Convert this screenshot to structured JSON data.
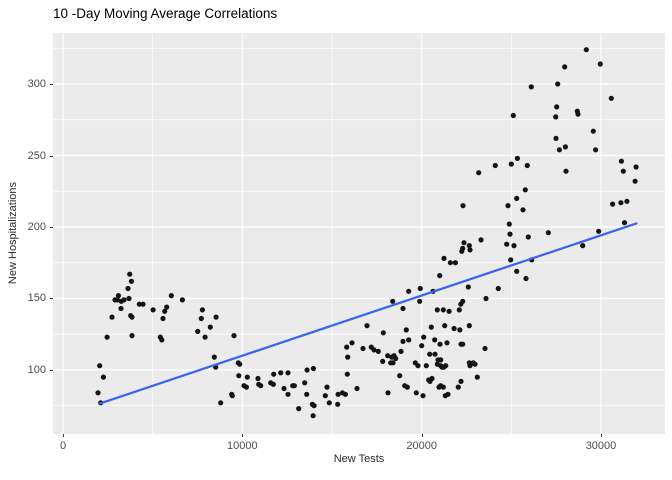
{
  "title": "10 -Day Moving Average Correlations",
  "chart_data": {
    "type": "scatter",
    "title": "10 -Day Moving Average Correlations",
    "xlabel": "New Tests",
    "ylabel": "New Hospitalizations",
    "x_domain": [
      -560,
      33570
    ],
    "y_domain": [
      55.2,
      335.7
    ],
    "x_ticks": [
      0,
      10000,
      20000,
      30000
    ],
    "x_minor_ticks": [
      5000,
      15000,
      25000
    ],
    "y_ticks": [
      100,
      150,
      200,
      250,
      300
    ],
    "y_minor_ticks": [
      75,
      125,
      175,
      225,
      275,
      325
    ],
    "grid": "on",
    "legend": "none",
    "panel_bg": "#EBEBEB",
    "grid_major_color": "#FFFFFF",
    "grid_minor_color": "#FFFFFF",
    "point_color": "#141414",
    "trend_color": "#3A63EE",
    "trend_line": {
      "x": [
        2050,
        31980
      ],
      "y": [
        76.5,
        202.5
      ]
    },
    "points": [
      [
        3720,
        167
      ],
      [
        3810,
        162
      ],
      [
        3625,
        157
      ],
      [
        3085,
        152
      ],
      [
        2900,
        149
      ],
      [
        3030,
        149
      ],
      [
        3250,
        148
      ],
      [
        3400,
        149
      ],
      [
        3680,
        150
      ],
      [
        3235,
        143
      ],
      [
        2733,
        137
      ],
      [
        3775,
        138
      ],
      [
        3848,
        137
      ],
      [
        4255,
        146
      ],
      [
        4460,
        146
      ],
      [
        5020,
        142
      ],
      [
        5670,
        141
      ],
      [
        5782,
        144
      ],
      [
        6040,
        152
      ],
      [
        6655,
        149
      ],
      [
        5577,
        136
      ],
      [
        5425,
        123
      ],
      [
        5505,
        121
      ],
      [
        2455,
        123
      ],
      [
        3848,
        124
      ],
      [
        7770,
        142
      ],
      [
        7713,
        136
      ],
      [
        8215,
        130
      ],
      [
        8533,
        137
      ],
      [
        7510,
        127
      ],
      [
        7920,
        123
      ],
      [
        9536,
        124
      ],
      [
        8438,
        109
      ],
      [
        8513,
        102
      ],
      [
        9776,
        105
      ],
      [
        9854,
        104
      ],
      [
        9800,
        96
      ],
      [
        10278,
        95
      ],
      [
        10094,
        89
      ],
      [
        10223,
        88
      ],
      [
        2046,
        103
      ],
      [
        2250,
        95
      ],
      [
        1952,
        84
      ],
      [
        2102,
        77
      ],
      [
        9408,
        83
      ],
      [
        9440,
        82
      ],
      [
        8795,
        77
      ],
      [
        21248,
        178
      ],
      [
        21600,
        175
      ],
      [
        21880,
        175
      ],
      [
        22240,
        183
      ],
      [
        22290,
        185
      ],
      [
        21007,
        166
      ],
      [
        19925,
        157
      ],
      [
        19278,
        155
      ],
      [
        20634,
        155
      ],
      [
        18960,
        143
      ],
      [
        18386,
        148
      ],
      [
        19892,
        148
      ],
      [
        20873,
        142
      ],
      [
        21208,
        142
      ],
      [
        21527,
        141
      ],
      [
        22101,
        142
      ],
      [
        22180,
        146
      ],
      [
        20539,
        130
      ],
      [
        21287,
        131
      ],
      [
        21806,
        129
      ],
      [
        22124,
        128
      ],
      [
        19144,
        128
      ],
      [
        16953,
        131
      ],
      [
        17862,
        126
      ],
      [
        18960,
        120
      ],
      [
        19278,
        121
      ],
      [
        20115,
        123
      ],
      [
        20003,
        117
      ],
      [
        20729,
        121
      ],
      [
        21024,
        118
      ],
      [
        21414,
        119
      ],
      [
        16116,
        119
      ],
      [
        15821,
        116
      ],
      [
        16730,
        115
      ],
      [
        17193,
        116
      ],
      [
        17343,
        114
      ],
      [
        17583,
        113
      ],
      [
        18107,
        110
      ],
      [
        18458,
        110
      ],
      [
        18330,
        109
      ],
      [
        18553,
        108
      ],
      [
        15877,
        109
      ],
      [
        17828,
        106
      ],
      [
        18274,
        105
      ],
      [
        18402,
        105
      ],
      [
        18848,
        113
      ],
      [
        19646,
        105
      ],
      [
        19796,
        103
      ],
      [
        20258,
        103
      ],
      [
        20448,
        111
      ],
      [
        20746,
        111
      ],
      [
        20913,
        107
      ],
      [
        21063,
        107
      ],
      [
        20873,
        104
      ],
      [
        21063,
        103
      ],
      [
        21133,
        102
      ],
      [
        21230,
        102
      ],
      [
        21342,
        103
      ],
      [
        10875,
        94
      ],
      [
        10914,
        90
      ],
      [
        11025,
        89
      ],
      [
        11750,
        97
      ],
      [
        12141,
        98
      ],
      [
        12548,
        98
      ],
      [
        11583,
        91
      ],
      [
        11728,
        90
      ],
      [
        12325,
        87
      ],
      [
        12548,
        83
      ],
      [
        12810,
        89
      ],
      [
        12900,
        89
      ],
      [
        13478,
        91
      ],
      [
        13590,
        83
      ],
      [
        13143,
        73
      ],
      [
        13906,
        76
      ],
      [
        14000,
        75
      ],
      [
        13943,
        68
      ],
      [
        13609,
        100
      ],
      [
        13961,
        101
      ],
      [
        14723,
        88
      ],
      [
        14628,
        82
      ],
      [
        14851,
        77
      ],
      [
        15337,
        83
      ],
      [
        15577,
        84
      ],
      [
        15744,
        83
      ],
      [
        15319,
        76
      ],
      [
        15854,
        97
      ],
      [
        16395,
        87
      ],
      [
        18123,
        84
      ],
      [
        19055,
        89
      ],
      [
        19200,
        88
      ],
      [
        18776,
        96
      ],
      [
        19702,
        84
      ],
      [
        20075,
        82
      ],
      [
        20393,
        93
      ],
      [
        20466,
        92
      ],
      [
        20578,
        94
      ],
      [
        20968,
        88
      ],
      [
        21063,
        89
      ],
      [
        21208,
        88
      ],
      [
        21320,
        82
      ],
      [
        21470,
        83
      ],
      [
        22045,
        88
      ],
      [
        22362,
        189
      ],
      [
        22658,
        187
      ],
      [
        22697,
        184
      ],
      [
        23310,
        191
      ],
      [
        24742,
        188
      ],
      [
        25149,
        187
      ],
      [
        24925,
        195
      ],
      [
        25946,
        193
      ],
      [
        27062,
        196
      ],
      [
        29870,
        197
      ],
      [
        28980,
        187
      ],
      [
        24964,
        177
      ],
      [
        26135,
        177
      ],
      [
        25299,
        169
      ],
      [
        25820,
        164
      ],
      [
        24274,
        157
      ],
      [
        22602,
        158
      ],
      [
        23589,
        150
      ],
      [
        22290,
        148
      ],
      [
        22658,
        131
      ],
      [
        22290,
        118
      ],
      [
        22195,
        118
      ],
      [
        23533,
        115
      ],
      [
        22658,
        105
      ],
      [
        22881,
        105
      ],
      [
        22976,
        104
      ],
      [
        22697,
        103
      ],
      [
        23104,
        95
      ],
      [
        22195,
        92
      ],
      [
        29180,
        324
      ],
      [
        29962,
        314
      ],
      [
        27976,
        312
      ],
      [
        27586,
        300
      ],
      [
        26114,
        298
      ],
      [
        30576,
        290
      ],
      [
        27530,
        284
      ],
      [
        25112,
        278
      ],
      [
        27475,
        277
      ],
      [
        28680,
        281
      ],
      [
        28717,
        279
      ],
      [
        29570,
        267
      ],
      [
        27493,
        262
      ],
      [
        27680,
        254
      ],
      [
        28013,
        256
      ],
      [
        29702,
        254
      ],
      [
        25336,
        248
      ],
      [
        25001,
        244
      ],
      [
        24107,
        243
      ],
      [
        25890,
        243
      ],
      [
        23180,
        238
      ],
      [
        28050,
        239
      ],
      [
        31136,
        246
      ],
      [
        31247,
        239
      ],
      [
        31956,
        242
      ],
      [
        31900,
        232
      ],
      [
        25778,
        226
      ],
      [
        25299,
        220
      ],
      [
        24814,
        215
      ],
      [
        25652,
        212
      ],
      [
        22306,
        215
      ],
      [
        24886,
        202
      ],
      [
        30650,
        216
      ],
      [
        31113,
        217
      ],
      [
        31448,
        218
      ],
      [
        31310,
        203
      ]
    ]
  }
}
